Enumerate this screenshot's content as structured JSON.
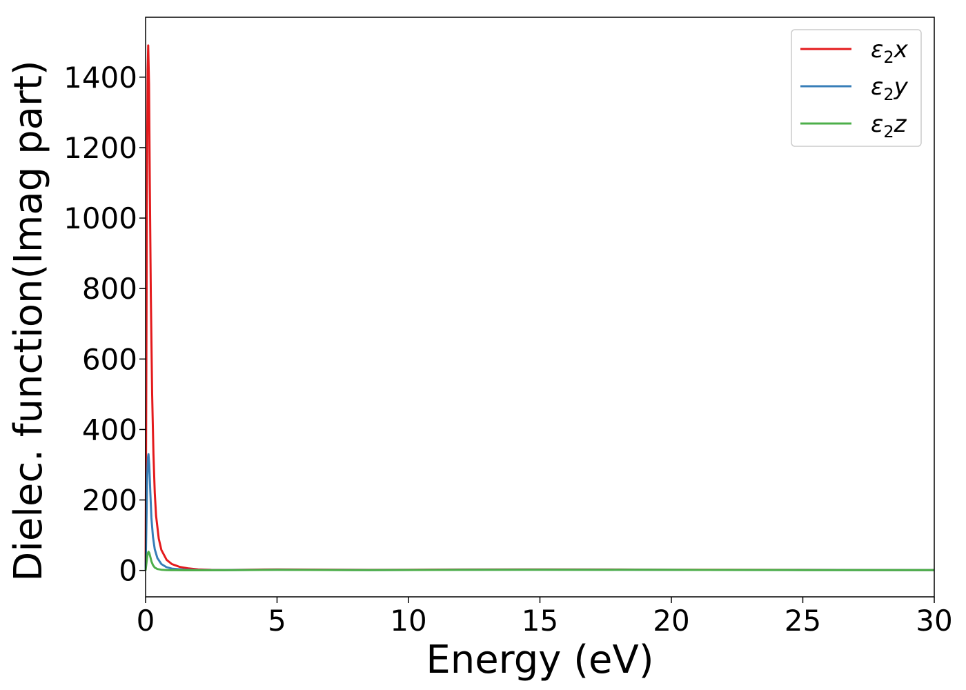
{
  "chart_data": {
    "type": "line",
    "title": "",
    "xlabel": "Energy (eV)",
    "ylabel": "Dielec. function(Imag part)",
    "xlim": [
      0,
      30
    ],
    "ylim": [
      -75,
      1570
    ],
    "xticks": [
      0,
      5,
      10,
      15,
      20,
      25,
      30
    ],
    "yticks": [
      0,
      200,
      400,
      600,
      800,
      1000,
      1200,
      1400
    ],
    "legend_position": "top-right",
    "grid": false,
    "series": [
      {
        "name": "ε2x",
        "legend": {
          "base": "ε",
          "sub": "2",
          "var": "x"
        },
        "color": "#e41a1c",
        "x": [
          0.0,
          0.02,
          0.05,
          0.08,
          0.1,
          0.13,
          0.16,
          0.2,
          0.25,
          0.3,
          0.35,
          0.4,
          0.5,
          0.6,
          0.8,
          1.0,
          1.3,
          1.6,
          2.0,
          2.5,
          3.0,
          3.5,
          4.0,
          5.0,
          7.0,
          8.5,
          10.0,
          12.0,
          15.0,
          18.0,
          20.0,
          25.0,
          30.0
        ],
        "y": [
          0,
          420,
          1050,
          1420,
          1490,
          1380,
          1100,
          780,
          500,
          330,
          220,
          155,
          90,
          58,
          30,
          18,
          10,
          6,
          3,
          1.5,
          1.2,
          1.5,
          2.2,
          3.0,
          2.2,
          1.5,
          2.0,
          2.5,
          3.0,
          2.6,
          2.0,
          1.5,
          1.0
        ]
      },
      {
        "name": "ε2y",
        "legend": {
          "base": "ε",
          "sub": "2",
          "var": "y"
        },
        "color": "#377eb8",
        "x": [
          0.0,
          0.03,
          0.06,
          0.09,
          0.11,
          0.14,
          0.18,
          0.22,
          0.28,
          0.35,
          0.45,
          0.6,
          0.8,
          1.0,
          1.5,
          2.0,
          3.0,
          5.0,
          8.5,
          12.0,
          15.0,
          20.0,
          25.0,
          30.0
        ],
        "y": [
          0,
          120,
          260,
          320,
          330,
          300,
          220,
          150,
          95,
          60,
          35,
          18,
          9,
          5,
          2,
          1,
          0.8,
          2.0,
          1.0,
          1.8,
          2.2,
          1.6,
          1.2,
          0.8
        ]
      },
      {
        "name": "ε2z",
        "legend": {
          "base": "ε",
          "sub": "2",
          "var": "z"
        },
        "color": "#4daf4a",
        "x": [
          0.0,
          0.04,
          0.08,
          0.11,
          0.14,
          0.18,
          0.22,
          0.28,
          0.35,
          0.45,
          0.6,
          0.8,
          1.0,
          1.5,
          2.0,
          3.0,
          5.0,
          8.5,
          12.0,
          15.0,
          20.0,
          25.0,
          30.0
        ],
        "y": [
          0,
          25,
          48,
          53,
          50,
          38,
          26,
          15,
          8,
          4,
          2,
          1,
          0.6,
          0.4,
          0.4,
          0.6,
          1.6,
          0.8,
          1.5,
          2.0,
          1.5,
          1.0,
          0.7
        ]
      }
    ]
  }
}
